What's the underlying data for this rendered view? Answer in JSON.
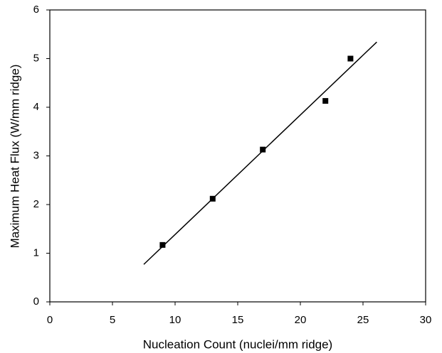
{
  "chart_data": {
    "type": "scatter",
    "x_label": "Nucleation Count (nuclei/mm ridge)",
    "y_label": "Maximum Heat Flux (W/mm ridge)",
    "x": [
      9,
      13,
      17,
      22,
      24
    ],
    "values": [
      1.17,
      2.12,
      3.13,
      4.13,
      5.0
    ],
    "color": "#000000",
    "fit_line": {
      "x": [
        7.5,
        26.1
      ],
      "values": [
        0.77,
        5.34
      ],
      "color": "#000000"
    },
    "xlim": [
      0,
      30
    ],
    "xticks": [
      0,
      5,
      10,
      15,
      20,
      25,
      30
    ],
    "ylim": [
      0,
      6
    ],
    "yticks": [
      0,
      1,
      2,
      3,
      4,
      5,
      6
    ],
    "grid": false
  }
}
